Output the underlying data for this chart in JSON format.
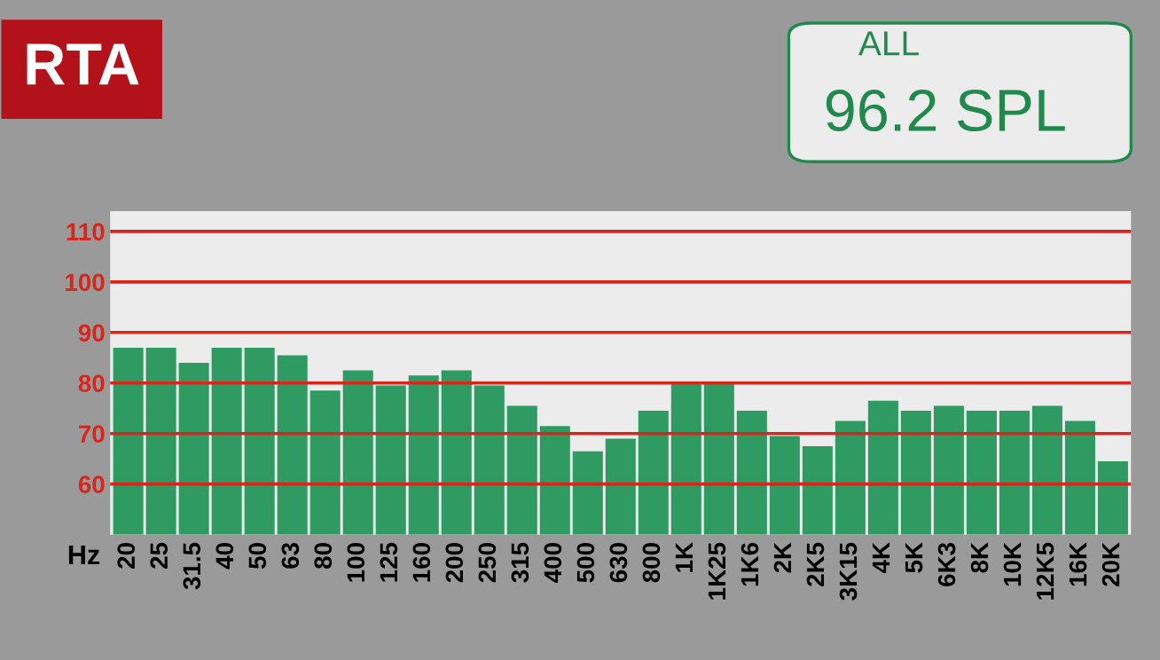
{
  "chart_data": {
    "type": "bar",
    "title": "RTA",
    "xlabel": "Hz",
    "categories": [
      "20",
      "25",
      "31.5",
      "40",
      "50",
      "63",
      "80",
      "100",
      "125",
      "160",
      "200",
      "250",
      "315",
      "400",
      "500",
      "630",
      "800",
      "1K",
      "1K25",
      "1K6",
      "2K",
      "2K5",
      "3K15",
      "4K",
      "5K",
      "6K3",
      "8K",
      "10K",
      "12K5",
      "16K",
      "20K"
    ],
    "series": [
      {
        "color": "#2f9a62",
        "values": [
          87,
          87,
          84,
          87,
          87,
          85.5,
          78.5,
          82.5,
          79.5,
          81.5,
          82.5,
          79.5,
          75.5,
          71.5,
          66.5,
          69,
          74.5,
          80,
          80,
          74.5,
          69.5,
          67.5,
          72.5,
          76.5,
          74.5,
          75.5,
          74.5,
          74.5,
          75.5,
          72.5,
          64.5
        ]
      }
    ],
    "ylim": [
      50,
      114
    ],
    "yticks": [
      60,
      70,
      80,
      90,
      100,
      110
    ],
    "grid": "y",
    "annotations": [
      "ALL",
      "96.2 SPL"
    ]
  }
}
